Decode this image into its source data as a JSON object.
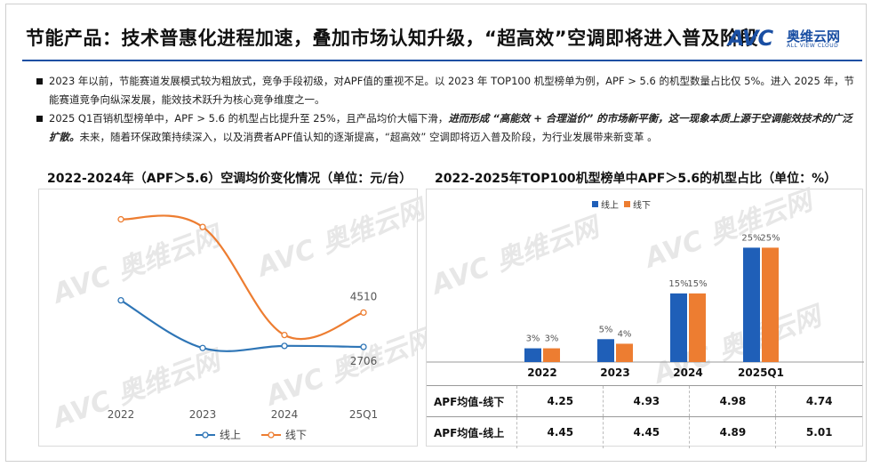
{
  "header": {
    "title": "节能产品：技术普惠化进程加速，叠加市场认知升级，“超高效”空调即将进入普及阶段",
    "logo_mark": "AVC",
    "logo_cn": "奥维云网",
    "logo_en": "ALL VIEW CLOUD"
  },
  "bullets": [
    {
      "parts": [
        {
          "text": "2023 年以前，节能赛道发展模式较为粗放式，竞争手段初级，对APF值的重视不足。以 2023 年 TOP100 机型榜单为例，APF > 5.6 的机型数量占比仅 5%。进入 2025 年，节能赛道竞争向纵深发展，能效技术跃升为核心竞争维度之一。",
          "em": false
        }
      ]
    },
    {
      "parts": [
        {
          "text": "2025 Q1百销机型榜单中，APF > 5.6 的机型占比提升至 25%，且产品均价大幅下滑，",
          "em": false
        },
        {
          "text": "进而形成 “高能效 + 合理溢价” 的市场新平衡，这一现象本质上源于空调能效技术的广泛扩散。",
          "em": true
        },
        {
          "text": "未来，随着环保政策持续深入，以及消费者APF值认知的逐渐提高，“超高效” 空调即将迈入普及阶段，为行业发展带来新变革 。",
          "em": false
        }
      ]
    }
  ],
  "watermark": "AVC 奥维云网",
  "chart_data": [
    {
      "type": "line",
      "title": "2022-2024年（APF＞5.6）空调均价变化情况（单位：元/台）",
      "categories": [
        "2022",
        "2023",
        "2024",
        "25Q1"
      ],
      "series": [
        {
          "name": "线上",
          "color": "#2e75b6",
          "values": [
            5150,
            2650,
            2760,
            2706
          ]
        },
        {
          "name": "线下",
          "color": "#ed7d31",
          "values": [
            9400,
            9000,
            3330,
            4510
          ]
        }
      ],
      "data_labels": [
        {
          "series": "线下",
          "category": "25Q1",
          "text": "4510"
        },
        {
          "series": "线上",
          "category": "25Q1",
          "text": "2706"
        }
      ],
      "ylim": [
        0,
        10500
      ],
      "legend": "bottom",
      "grid": false
    },
    {
      "type": "bar",
      "title": "2022-2025年TOP100机型榜单中APF＞5.6的机型占比（单位：%）",
      "categories": [
        "2022",
        "2023",
        "2024",
        "2025Q1"
      ],
      "series": [
        {
          "name": "线上",
          "color": "#1f5fb8",
          "values": [
            3,
            5,
            15,
            25
          ],
          "labels": [
            "3%",
            "5%",
            "15%",
            "25%"
          ]
        },
        {
          "name": "线下",
          "color": "#ed7d31",
          "values": [
            3,
            4,
            15,
            25
          ],
          "labels": [
            "3%",
            "4%",
            "15%",
            "25%"
          ]
        }
      ],
      "ylim": [
        0,
        28
      ],
      "legend": "top"
    },
    {
      "type": "table",
      "columns": [
        "2022",
        "2023",
        "2024",
        "2025Q1"
      ],
      "rows": [
        {
          "label": "APF均值-线下",
          "values": [
            "4.25",
            "4.93",
            "4.98",
            "4.74"
          ]
        },
        {
          "label": "APF均值-线上",
          "values": [
            "4.45",
            "4.45",
            "4.89",
            "5.01"
          ]
        }
      ]
    }
  ]
}
